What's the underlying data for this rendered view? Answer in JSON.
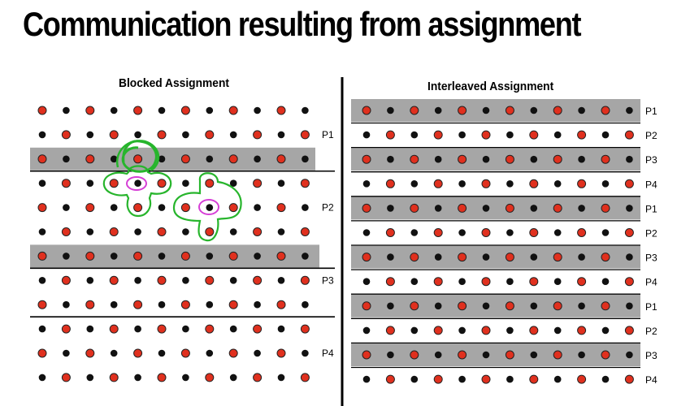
{
  "title": "Communication resulting from assignment",
  "left_panel": {
    "heading": "Blocked Assignment",
    "rows": 12,
    "cols": 12,
    "shaded_rows": [
      2,
      6
    ],
    "labels": [
      {
        "text": "P1",
        "row": 1
      },
      {
        "text": "P2",
        "row": 4
      },
      {
        "text": "P3",
        "row": 7
      },
      {
        "text": "P4",
        "row": 10
      }
    ],
    "divider_after_rows": [
      2,
      6,
      8
    ]
  },
  "right_panel": {
    "heading": "Interleaved Assignment",
    "rows": 12,
    "cols": 12,
    "shaded_rows": [
      0,
      2,
      4,
      6,
      8,
      10
    ],
    "row_labels": [
      "P1",
      "P2",
      "P3",
      "P4",
      "P1",
      "P2",
      "P3",
      "P4",
      "P1",
      "P2",
      "P3",
      "P4"
    ]
  },
  "colors": {
    "red_dot": "#e0301e",
    "black_dot": "#111111",
    "shade": "#a6a6a6",
    "annotation_green": "#27b52c",
    "annotation_magenta": "#d63fd6"
  }
}
